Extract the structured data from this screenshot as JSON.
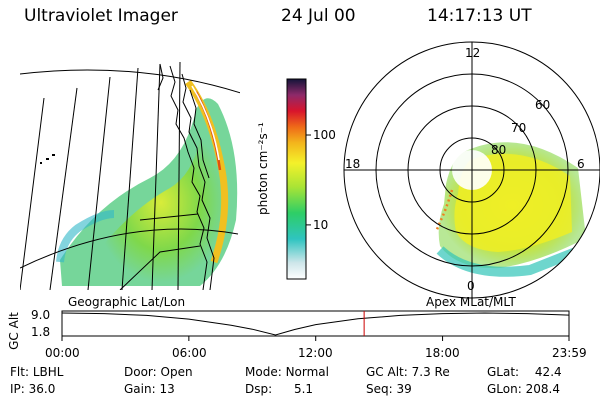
{
  "header": {
    "title": "Ultraviolet Imager",
    "date": "24 Jul 00",
    "time": "14:17:13 UT"
  },
  "colorbar": {
    "label": "photon cm⁻²s⁻¹",
    "ticks": [
      {
        "value": 100,
        "label": "100"
      },
      {
        "value": 10,
        "label": "10"
      }
    ],
    "scale": "log",
    "range": [
      2.5,
      420
    ]
  },
  "panels": {
    "left_label": "Geographic Lat/Lon",
    "right_label": "Apex MLat/MLT"
  },
  "polar": {
    "mlt_labels": {
      "top": "12",
      "left": "18",
      "right": "6",
      "bottom": "0"
    },
    "lat_labels": [
      "60",
      "70",
      "80"
    ]
  },
  "altitude_plot": {
    "ylabel": "GC Alt",
    "yticks": [
      "9.0",
      "1.8"
    ],
    "xticks": [
      "00:00",
      "06:00",
      "12:00",
      "18:00",
      "23:59"
    ]
  },
  "chart_data": {
    "type": "line",
    "title": "",
    "xlabel": "",
    "ylabel": "GC Alt",
    "x_units": "hours UT",
    "x": [
      0,
      2,
      4,
      6,
      8,
      9,
      10.1,
      11,
      12,
      14,
      16,
      18,
      20,
      22,
      23.98
    ],
    "y": [
      9.0,
      8.8,
      8.2,
      7.0,
      5.0,
      3.7,
      1.8,
      3.6,
      5.2,
      7.1,
      8.2,
      8.8,
      9.0,
      8.8,
      8.3
    ],
    "ylim": [
      1.8,
      9.0
    ],
    "xlim": [
      0,
      23.98
    ],
    "current_time_hours": 14.29
  },
  "status": {
    "row1": [
      {
        "label": "Flt:",
        "value": "LBHL"
      },
      {
        "label": "Door:",
        "value": "Open"
      },
      {
        "label": "Mode:",
        "value": "Normal"
      },
      {
        "label": "GC Alt:",
        "value": "7.3 Re"
      },
      {
        "label": "GLat:",
        "value": "42.4"
      }
    ],
    "row2": [
      {
        "label": "IP:",
        "value": "36.0"
      },
      {
        "label": "Gain:",
        "value": "13"
      },
      {
        "label": "Dsp:",
        "value": "5.1"
      },
      {
        "label": "Seq:",
        "value": "39"
      },
      {
        "label": "GLon:",
        "value": "208.4"
      }
    ]
  },
  "colors": {
    "grid": "#000000",
    "current_time_marker": "#cc0000",
    "bright": "#e2c000"
  }
}
